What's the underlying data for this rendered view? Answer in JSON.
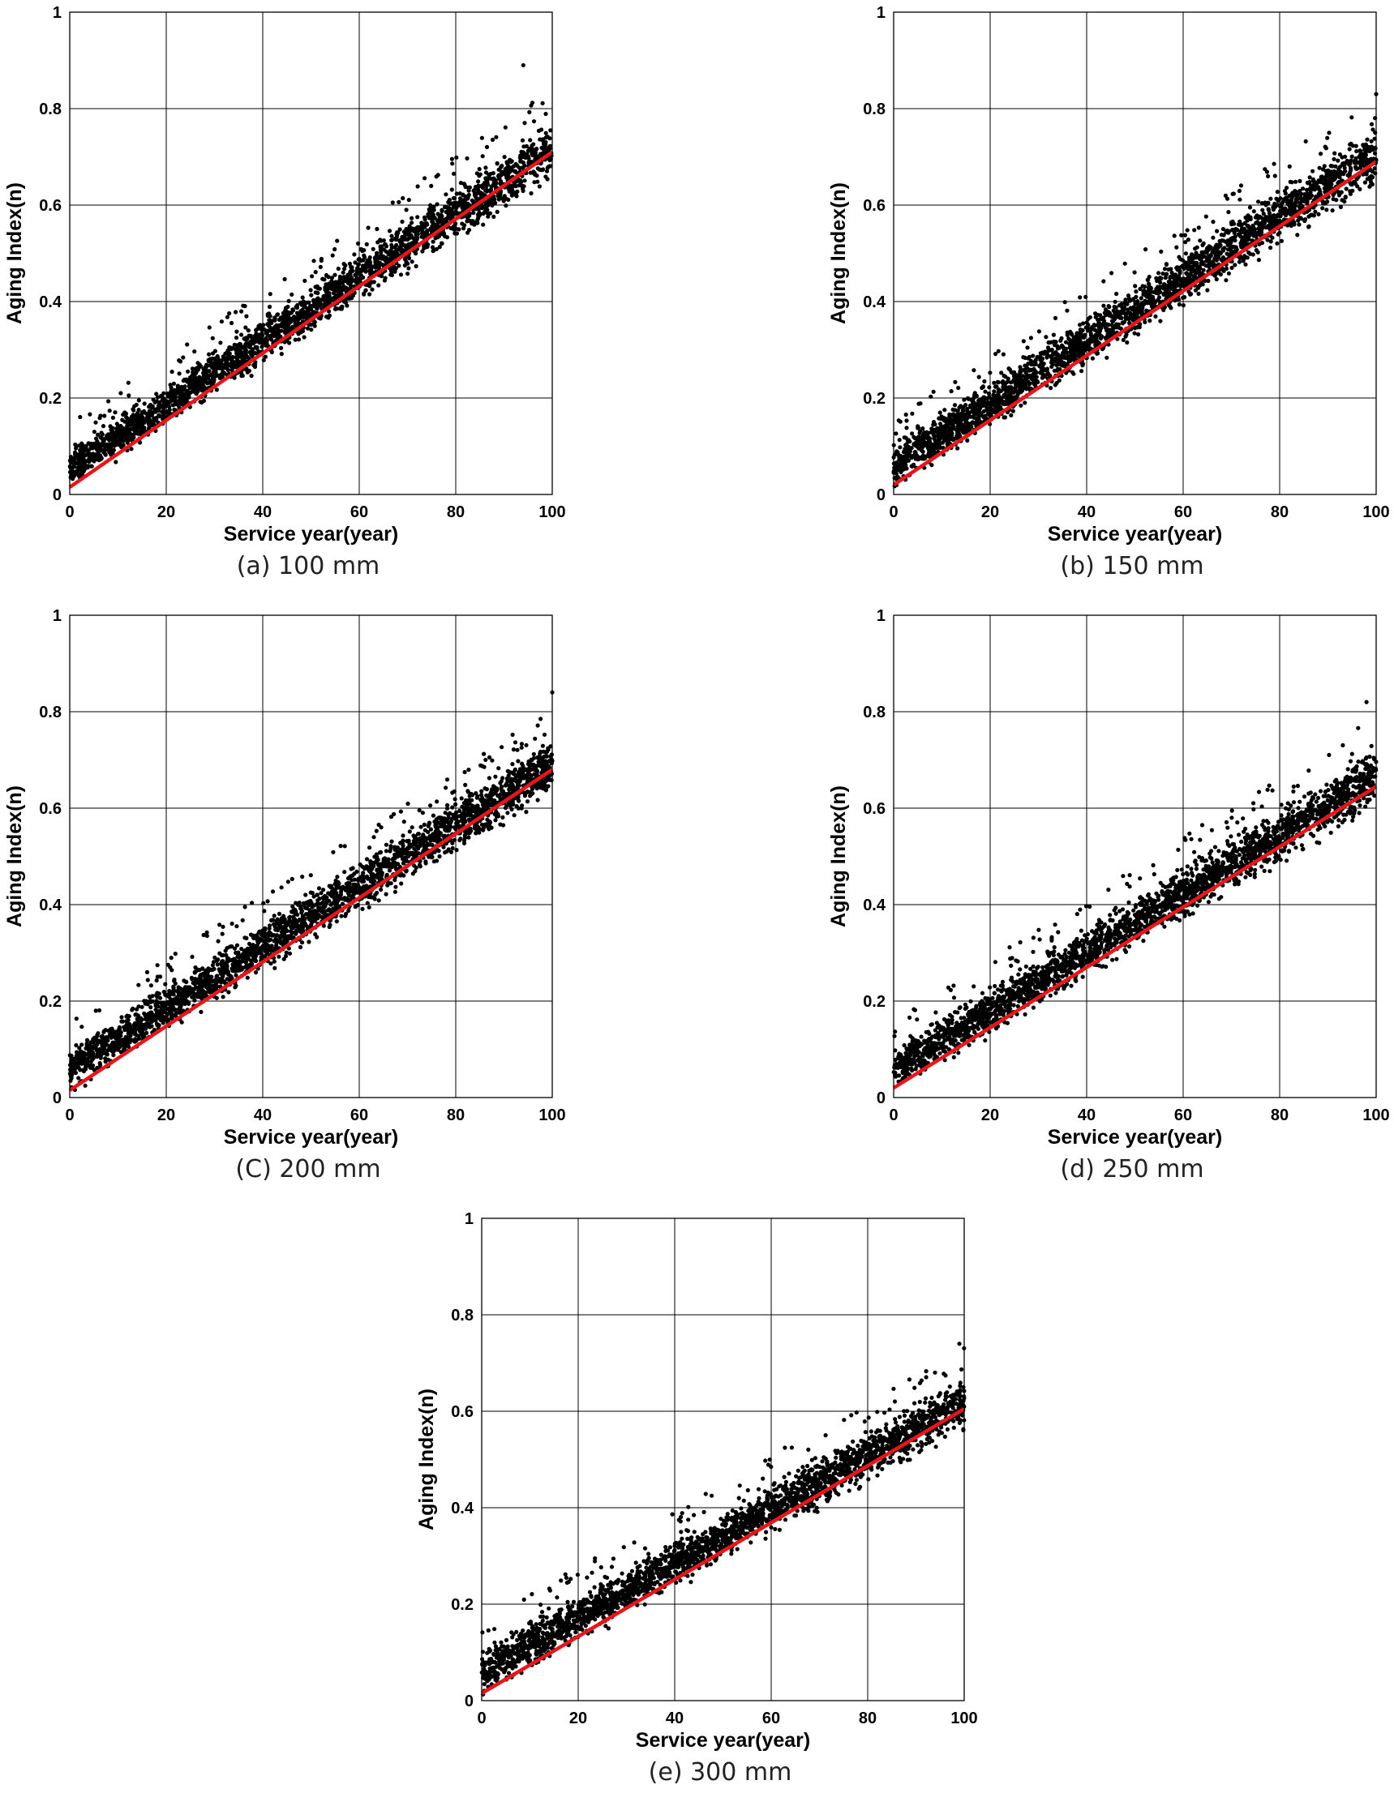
{
  "chart_data": [
    {
      "type": "scatter",
      "caption": "(a) 100 mm",
      "xlabel": "Service year(year)",
      "ylabel": "Aging Index(n)",
      "xlim": [
        0,
        100
      ],
      "ylim": [
        0,
        1
      ],
      "x_ticks": [
        "0",
        "20",
        "40",
        "60",
        "80",
        "100"
      ],
      "y_ticks": [
        "0",
        "0.2",
        "0.4",
        "0.6",
        "0.8",
        "1"
      ],
      "grid": true,
      "scatter": {
        "color": "#000000",
        "x_range": [
          0,
          100
        ],
        "lower_envelope": [
          [
            0,
            0.0
          ],
          [
            100,
            0.64
          ]
        ],
        "upper_envelope": [
          [
            0,
            0.11
          ],
          [
            100,
            0.79
          ]
        ],
        "max_outlier": [
          94,
          0.89
        ]
      },
      "fit_line": {
        "color": "#e8161b",
        "points": [
          [
            0,
            0.015
          ],
          [
            100,
            0.71
          ]
        ]
      }
    },
    {
      "type": "scatter",
      "caption": "(b) 150 mm",
      "xlabel": "Service year(year)",
      "ylabel": "Aging Index(n)",
      "xlim": [
        0,
        100
      ],
      "ylim": [
        0,
        1
      ],
      "x_ticks": [
        "0",
        "20",
        "40",
        "60",
        "80",
        "100"
      ],
      "y_ticks": [
        "0",
        "0.2",
        "0.4",
        "0.6",
        "0.8",
        "1"
      ],
      "grid": true,
      "scatter": {
        "color": "#000000",
        "x_range": [
          0,
          100
        ],
        "lower_envelope": [
          [
            0,
            0.0
          ],
          [
            100,
            0.63
          ]
        ],
        "upper_envelope": [
          [
            0,
            0.12
          ],
          [
            100,
            0.78
          ]
        ],
        "max_outlier": [
          100,
          0.83
        ]
      },
      "fit_line": {
        "color": "#e8161b",
        "points": [
          [
            0,
            0.02
          ],
          [
            100,
            0.69
          ]
        ]
      }
    },
    {
      "type": "scatter",
      "caption": "(C) 200 mm",
      "xlabel": "Service year(year)",
      "ylabel": "Aging Index(n)",
      "xlim": [
        0,
        100
      ],
      "ylim": [
        0,
        1
      ],
      "x_ticks": [
        "0",
        "20",
        "40",
        "60",
        "80",
        "100"
      ],
      "y_ticks": [
        "0",
        "0.2",
        "0.4",
        "0.6",
        "0.8",
        "1"
      ],
      "grid": true,
      "scatter": {
        "color": "#000000",
        "x_range": [
          0,
          100
        ],
        "lower_envelope": [
          [
            0,
            0.0
          ],
          [
            100,
            0.62
          ]
        ],
        "upper_envelope": [
          [
            0,
            0.12
          ],
          [
            100,
            0.76
          ]
        ],
        "max_outlier": [
          100,
          0.84
        ]
      },
      "fit_line": {
        "color": "#e8161b",
        "points": [
          [
            0,
            0.015
          ],
          [
            100,
            0.68
          ]
        ]
      }
    },
    {
      "type": "scatter",
      "caption": "(d) 250 mm",
      "xlabel": "Service year(year)",
      "ylabel": "Aging Index(n)",
      "xlim": [
        0,
        100
      ],
      "ylim": [
        0,
        1
      ],
      "x_ticks": [
        "0",
        "20",
        "40",
        "60",
        "80",
        "100"
      ],
      "y_ticks": [
        "0",
        "0.2",
        "0.4",
        "0.6",
        "0.8",
        "1"
      ],
      "grid": true,
      "scatter": {
        "color": "#000000",
        "x_range": [
          0,
          100
        ],
        "lower_envelope": [
          [
            0,
            0.0
          ],
          [
            100,
            0.59
          ]
        ],
        "upper_envelope": [
          [
            0,
            0.12
          ],
          [
            100,
            0.74
          ]
        ],
        "max_outlier": [
          98,
          0.82
        ]
      },
      "fit_line": {
        "color": "#e8161b",
        "points": [
          [
            0,
            0.02
          ],
          [
            100,
            0.645
          ]
        ]
      }
    },
    {
      "type": "scatter",
      "caption": "(e) 300 mm",
      "xlabel": "Service year(year)",
      "ylabel": "Aging Index(n)",
      "xlim": [
        0,
        100
      ],
      "ylim": [
        0,
        1
      ],
      "x_ticks": [
        "0",
        "20",
        "40",
        "60",
        "80",
        "100"
      ],
      "y_ticks": [
        "0",
        "0.2",
        "0.4",
        "0.6",
        "0.8",
        "1"
      ],
      "grid": true,
      "scatter": {
        "color": "#000000",
        "x_range": [
          0,
          100
        ],
        "lower_envelope": [
          [
            0,
            0.0
          ],
          [
            100,
            0.55
          ]
        ],
        "upper_envelope": [
          [
            0,
            0.12
          ],
          [
            100,
            0.69
          ]
        ],
        "max_outlier": [
          99,
          0.74
        ]
      },
      "fit_line": {
        "color": "#e8161b",
        "points": [
          [
            0,
            0.015
          ],
          [
            100,
            0.605
          ]
        ]
      }
    }
  ]
}
